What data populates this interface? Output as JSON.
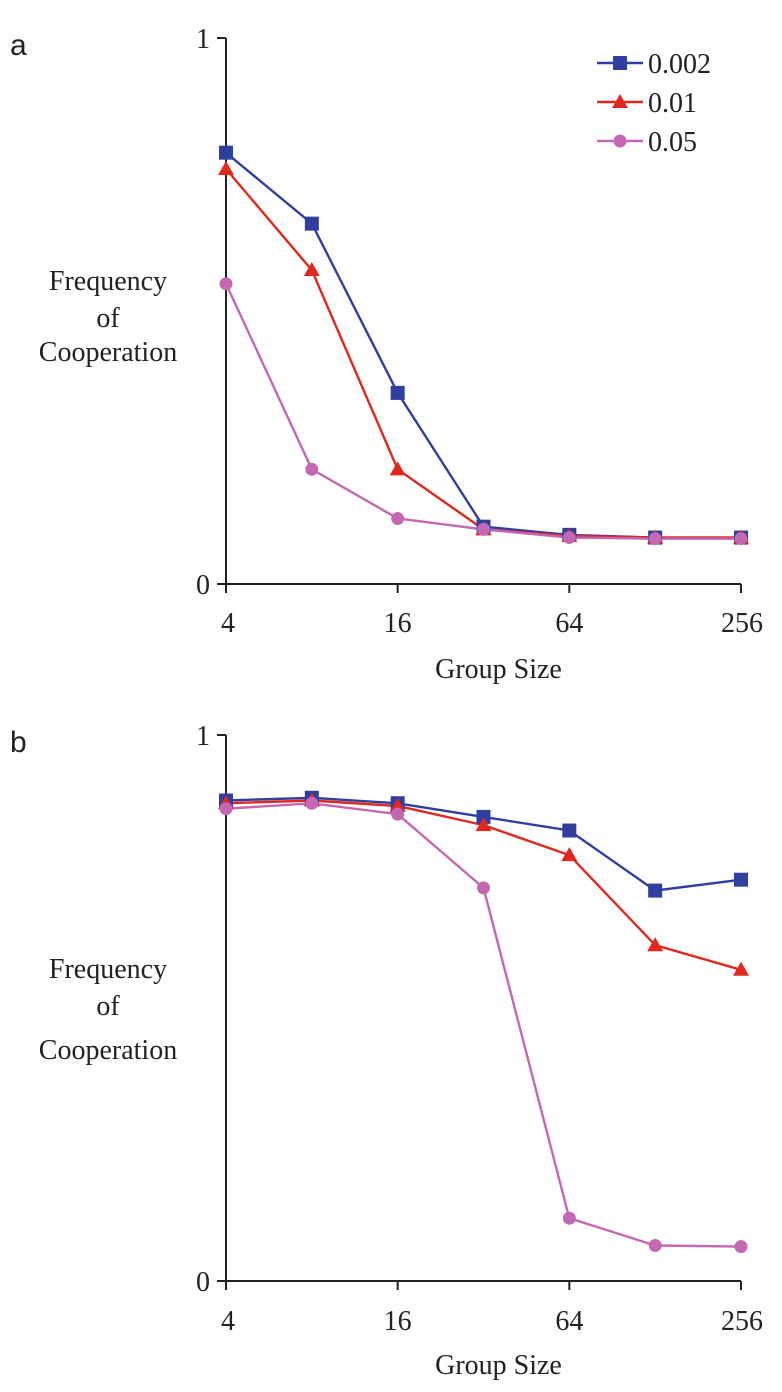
{
  "chart_data": [
    {
      "type": "line",
      "panel_label": "a",
      "xlabel": "Group Size",
      "ylabel_lines": [
        "Frequency",
        "of",
        "Cooperation"
      ],
      "x_scale": "log2",
      "xlim": [
        4,
        256
      ],
      "ylim": [
        0,
        1
      ],
      "x_ticks": [
        4,
        16,
        64,
        256
      ],
      "x_tick_labels": [
        "4",
        "16",
        "64",
        "256"
      ],
      "y_ticks": [
        0,
        1
      ],
      "y_tick_labels": [
        "0",
        "1"
      ],
      "x": [
        4,
        8,
        16,
        32,
        64,
        128,
        256
      ],
      "grid": false,
      "legend_position": "top-right",
      "series": [
        {
          "name": "0.002",
          "color": "#2e3fa0",
          "marker": "square",
          "values": [
            0.79,
            0.66,
            0.35,
            0.105,
            0.09,
            0.085,
            0.085
          ]
        },
        {
          "name": "0.01",
          "color": "#e0281e",
          "marker": "triangle",
          "values": [
            0.76,
            0.575,
            0.21,
            0.1,
            0.088,
            0.085,
            0.085
          ]
        },
        {
          "name": "0.05",
          "color": "#c468b4",
          "marker": "circle",
          "values": [
            0.55,
            0.21,
            0.12,
            0.1,
            0.085,
            0.083,
            0.083
          ]
        }
      ]
    },
    {
      "type": "line",
      "panel_label": "b",
      "xlabel": "Group Size",
      "ylabel_lines": [
        "Frequency",
        "of",
        "Cooperation"
      ],
      "x_scale": "log2",
      "xlim": [
        4,
        256
      ],
      "ylim": [
        0,
        1
      ],
      "x_ticks": [
        4,
        16,
        64,
        256
      ],
      "x_tick_labels": [
        "4",
        "16",
        "64",
        "256"
      ],
      "y_ticks": [
        0,
        1
      ],
      "y_tick_labels": [
        "0",
        "1"
      ],
      "x": [
        4,
        8,
        16,
        32,
        64,
        128,
        256
      ],
      "grid": false,
      "series": [
        {
          "name": "0.002",
          "color": "#2e3fa0",
          "marker": "square",
          "values": [
            0.88,
            0.885,
            0.875,
            0.85,
            0.825,
            0.715,
            0.735
          ]
        },
        {
          "name": "0.01",
          "color": "#e0281e",
          "marker": "triangle",
          "values": [
            0.875,
            0.88,
            0.87,
            0.835,
            0.78,
            0.615,
            0.57
          ]
        },
        {
          "name": "0.05",
          "color": "#c468b4",
          "marker": "circle",
          "values": [
            0.865,
            0.875,
            0.855,
            0.72,
            0.115,
            0.065,
            0.063
          ]
        }
      ]
    }
  ]
}
